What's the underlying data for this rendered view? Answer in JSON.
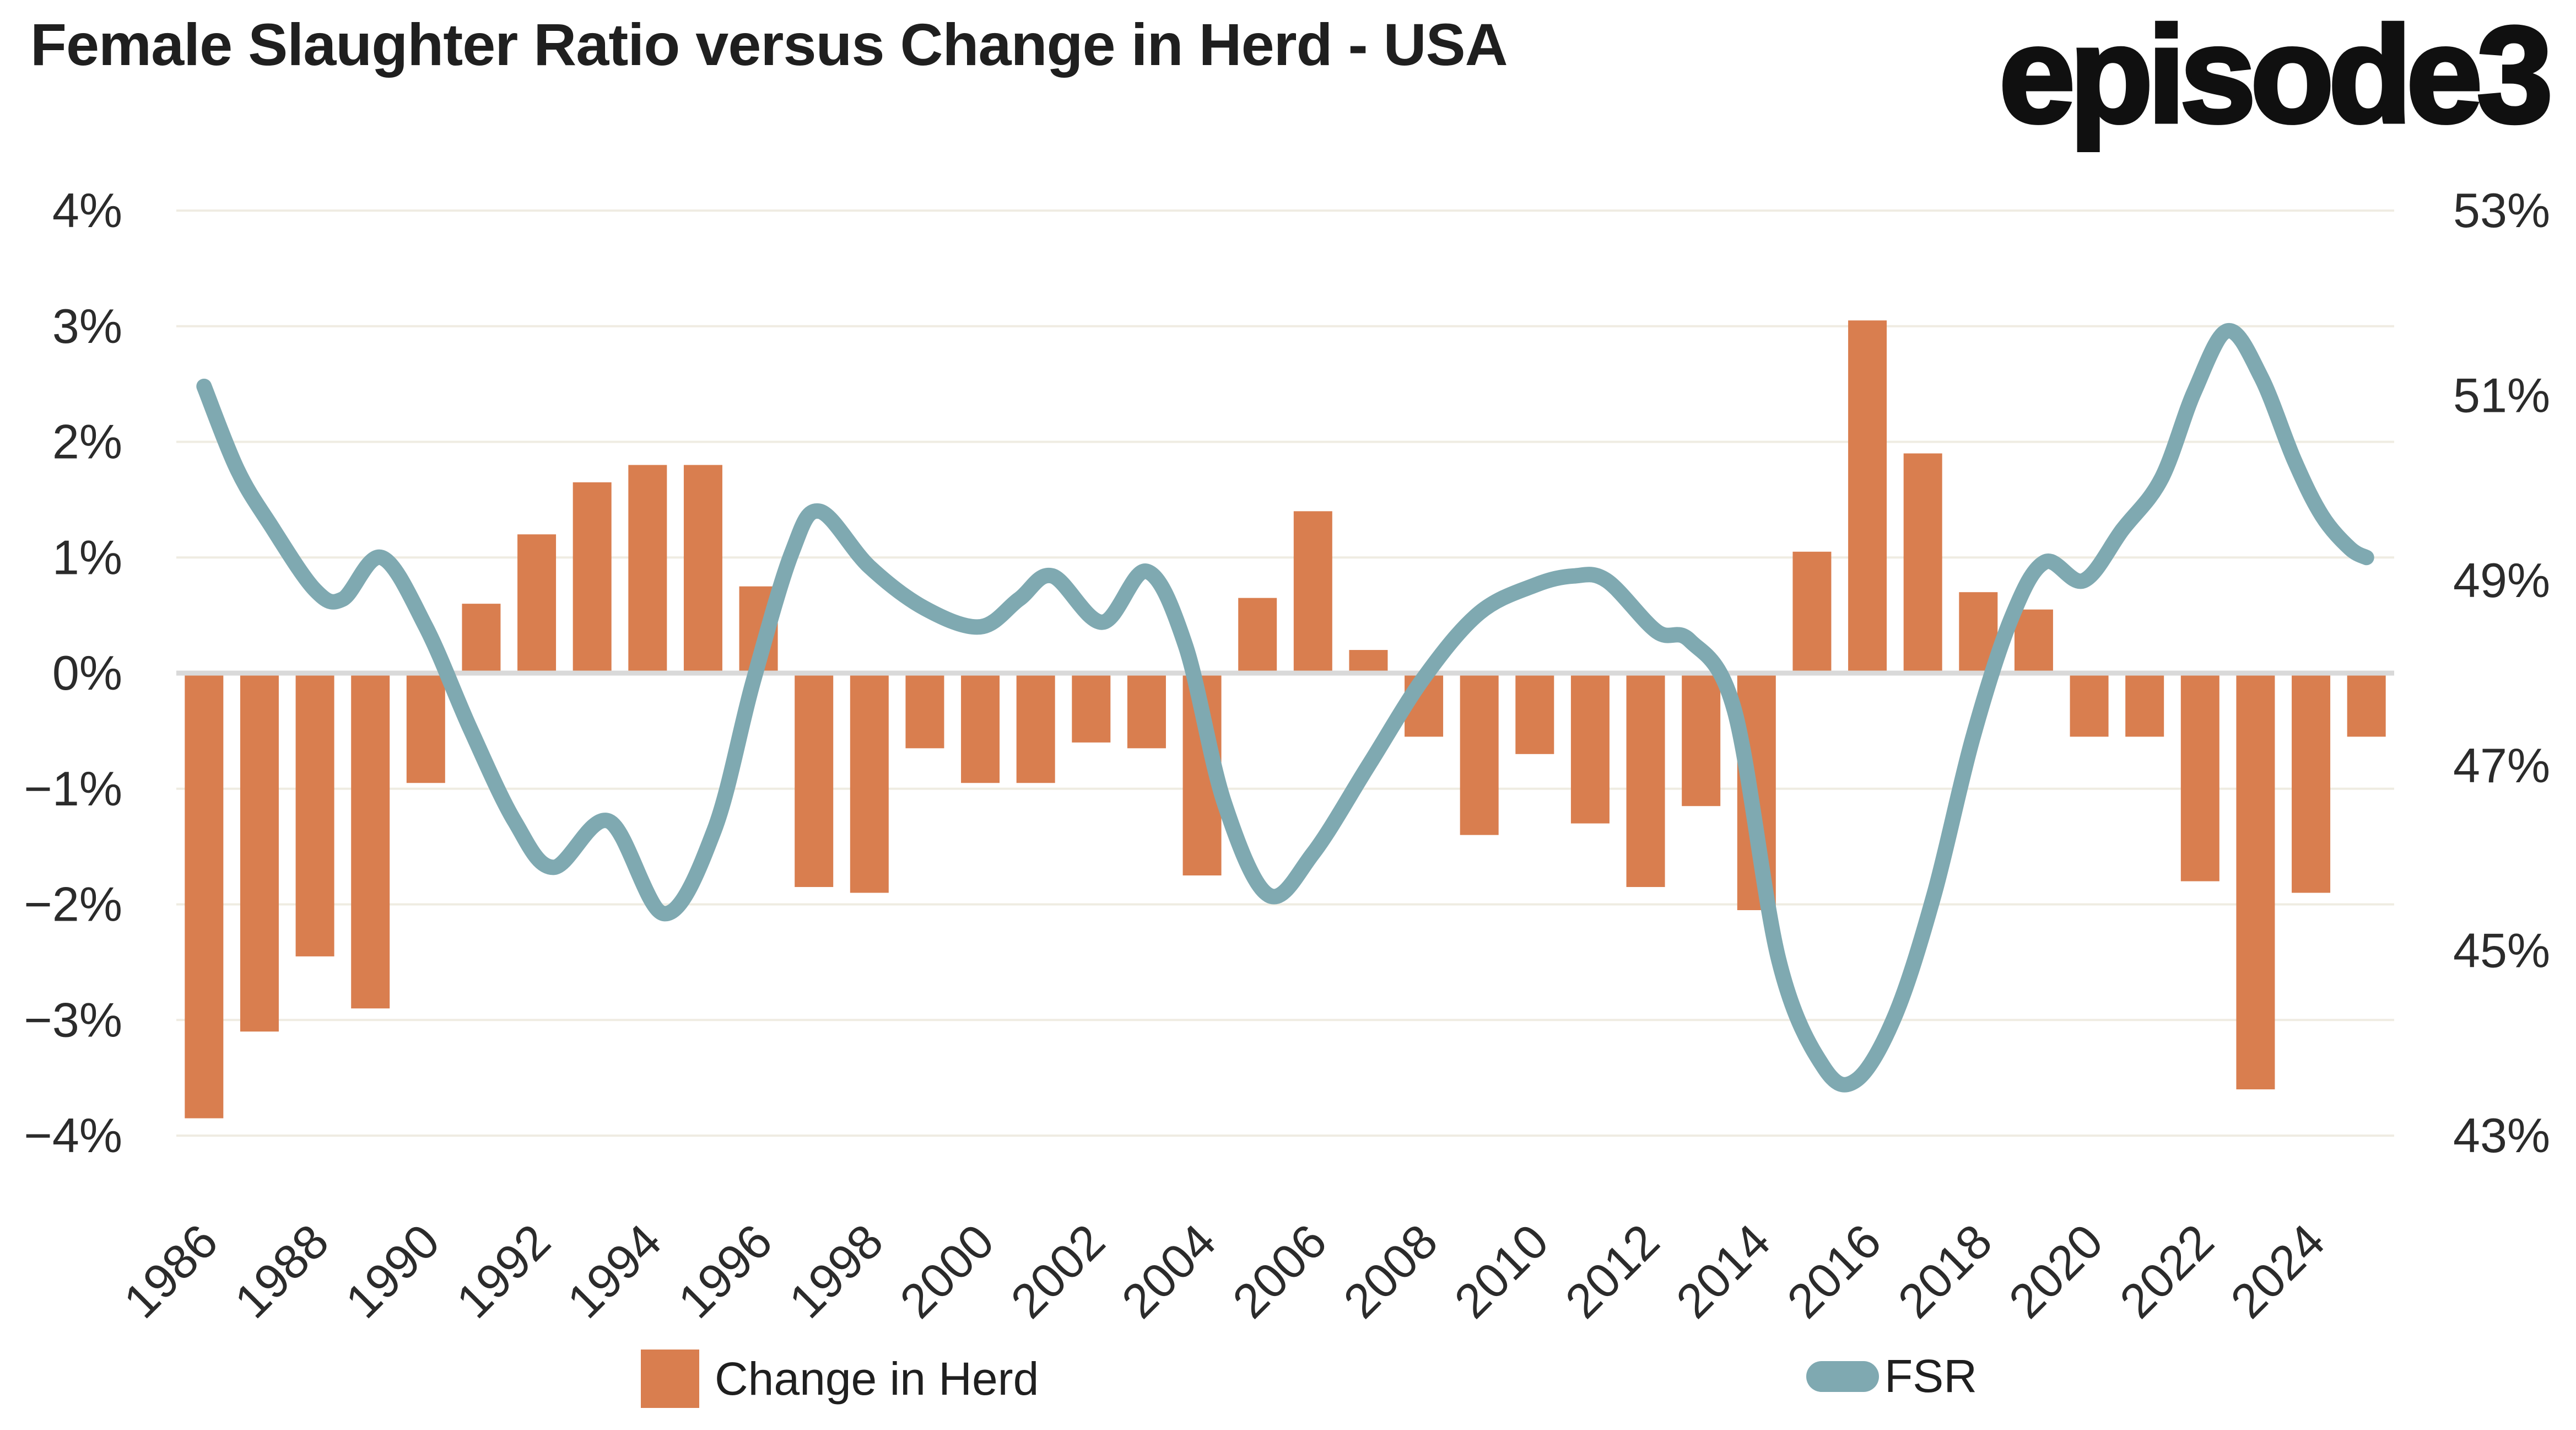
{
  "title": "Female Slaughter Ratio versus Change in Herd - USA",
  "logo": {
    "text": "episode3"
  },
  "colors": {
    "bar": "#D97E4F",
    "line": "#7FA9B1",
    "gridline": "#EFECE2",
    "zero_line": "#D9D9D9",
    "tick_text": "#2b2b2b",
    "title_text": "#1f1f1f"
  },
  "chart_data": {
    "type": "bar",
    "subtype": "combo-bar-line-dual-axis",
    "title": "Female Slaughter Ratio versus Change in Herd - USA",
    "categories": [
      1986,
      1987,
      1988,
      1989,
      1990,
      1991,
      1992,
      1993,
      1994,
      1995,
      1996,
      1997,
      1998,
      1999,
      2000,
      2001,
      2002,
      2003,
      2004,
      2005,
      2006,
      2007,
      2008,
      2009,
      2010,
      2011,
      2012,
      2013,
      2014,
      2015,
      2016,
      2017,
      2018,
      2019,
      2020,
      2021,
      2022,
      2023,
      2024,
      2025
    ],
    "series": [
      {
        "name": "Change in Herd",
        "type": "bar",
        "axis": "left",
        "color": "#D97E4F",
        "values": [
          -3.85,
          -3.1,
          -2.45,
          -2.9,
          -0.95,
          0.6,
          1.2,
          1.65,
          1.8,
          1.8,
          0.75,
          -1.85,
          -1.9,
          -0.65,
          -0.95,
          -0.95,
          -0.6,
          -0.65,
          -1.75,
          0.65,
          1.4,
          0.2,
          -0.55,
          -1.4,
          -0.7,
          -1.3,
          -1.85,
          -1.15,
          -2.05,
          1.05,
          3.05,
          1.9,
          0.7,
          0.55,
          -0.55,
          -0.55,
          -1.8,
          -3.6,
          -1.9,
          -0.55
        ]
      },
      {
        "name": "FSR",
        "type": "line",
        "axis": "right",
        "color": "#7FA9B1",
        "points": [
          [
            1986.0,
            51.1
          ],
          [
            1986.6,
            50.2
          ],
          [
            1987.2,
            49.6
          ],
          [
            1988.0,
            48.9
          ],
          [
            1988.5,
            48.8
          ],
          [
            1989.2,
            49.25
          ],
          [
            1990.0,
            48.5
          ],
          [
            1990.8,
            47.4
          ],
          [
            1991.6,
            46.4
          ],
          [
            1992.3,
            45.9
          ],
          [
            1993.3,
            46.4
          ],
          [
            1994.3,
            45.4
          ],
          [
            1995.2,
            46.3
          ],
          [
            1995.9,
            47.9
          ],
          [
            1996.6,
            49.3
          ],
          [
            1997.1,
            49.75
          ],
          [
            1998.0,
            49.15
          ],
          [
            1999.0,
            48.7
          ],
          [
            2000.0,
            48.5
          ],
          [
            2000.7,
            48.8
          ],
          [
            2001.3,
            49.05
          ],
          [
            2002.2,
            48.55
          ],
          [
            2003.0,
            49.1
          ],
          [
            2003.7,
            48.3
          ],
          [
            2004.4,
            46.6
          ],
          [
            2005.2,
            45.6
          ],
          [
            2006.0,
            46.05
          ],
          [
            2007.0,
            47.0
          ],
          [
            2008.0,
            47.95
          ],
          [
            2009.0,
            48.65
          ],
          [
            2010.0,
            48.95
          ],
          [
            2010.7,
            49.05
          ],
          [
            2011.3,
            49.0
          ],
          [
            2012.2,
            48.45
          ],
          [
            2012.8,
            48.35
          ],
          [
            2013.6,
            47.6
          ],
          [
            2014.4,
            44.9
          ],
          [
            2015.2,
            43.75
          ],
          [
            2015.8,
            43.6
          ],
          [
            2016.5,
            44.3
          ],
          [
            2017.2,
            45.6
          ],
          [
            2017.9,
            47.3
          ],
          [
            2018.6,
            48.6
          ],
          [
            2019.2,
            49.2
          ],
          [
            2019.9,
            49.0
          ],
          [
            2020.6,
            49.55
          ],
          [
            2021.3,
            50.1
          ],
          [
            2021.9,
            51.05
          ],
          [
            2022.5,
            51.7
          ],
          [
            2023.1,
            51.2
          ],
          [
            2023.7,
            50.3
          ],
          [
            2024.2,
            49.7
          ],
          [
            2024.7,
            49.35
          ],
          [
            2025.0,
            49.25
          ]
        ]
      }
    ],
    "left_axis": {
      "min": -4,
      "max": 4,
      "ticks": [
        "4%",
        "3%",
        "2%",
        "1%",
        "0%",
        "−1%",
        "−2%",
        "−3%",
        "−4%"
      ],
      "tick_values": [
        4,
        3,
        2,
        1,
        0,
        -1,
        -2,
        -3,
        -4
      ]
    },
    "right_axis": {
      "min": 43,
      "max": 53,
      "ticks": [
        "53%",
        "51%",
        "49%",
        "47%",
        "45%",
        "43%"
      ],
      "tick_values": [
        53,
        51,
        49,
        47,
        45,
        43
      ]
    },
    "x_axis": {
      "tick_labels": [
        "1986",
        "1988",
        "1990",
        "1992",
        "1994",
        "1996",
        "1998",
        "2000",
        "2002",
        "2004",
        "2006",
        "2008",
        "2010",
        "2012",
        "2014",
        "2016",
        "2018",
        "2020",
        "2022",
        "2024"
      ],
      "tick_values": [
        1986,
        1988,
        1990,
        1992,
        1994,
        1996,
        1998,
        2000,
        2002,
        2004,
        2006,
        2008,
        2010,
        2012,
        2014,
        2016,
        2018,
        2020,
        2022,
        2024
      ]
    },
    "grid": true,
    "legend_position": "bottom"
  },
  "legend": {
    "herd_label": "Change in Herd",
    "fsr_label": "FSR"
  }
}
